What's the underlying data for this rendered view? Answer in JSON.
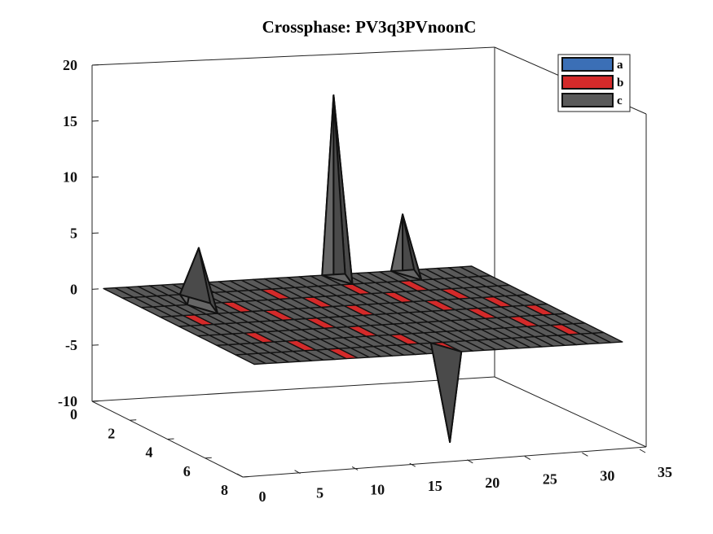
{
  "chart_data": {
    "type": "surface",
    "title": "Crossphase: PV3q3PVnoonC",
    "xlabel": "",
    "ylabel": "",
    "zlabel": "",
    "xlim": [
      0,
      35
    ],
    "ylim": [
      0,
      8
    ],
    "zlim": [
      -10,
      20
    ],
    "x_ticks": [
      "0",
      "5",
      "10",
      "15",
      "20",
      "25",
      "30",
      "35"
    ],
    "y_ticks": [
      "0",
      "2",
      "4",
      "6",
      "8"
    ],
    "z_ticks": [
      "-10",
      "-5",
      "0",
      "5",
      "10",
      "15",
      "20"
    ],
    "legend": {
      "position": "top-right",
      "entries": [
        {
          "label": "a",
          "color": "#3b6fb6"
        },
        {
          "label": "b",
          "color": "#d42a2a"
        },
        {
          "label": "c",
          "color": "#5a5a5a"
        }
      ]
    },
    "series": [
      {
        "name": "c",
        "color": "#5a5a5a",
        "features": [
          {
            "kind": "peak",
            "x": 6,
            "y": 2,
            "z": 5
          },
          {
            "kind": "peak",
            "x": 21,
            "y": 0,
            "z": 16
          },
          {
            "kind": "peak",
            "x": 27,
            "y": 0,
            "z": 5
          },
          {
            "kind": "valley",
            "x": 18,
            "y": 8,
            "z": -8
          }
        ]
      },
      {
        "name": "b",
        "color": "#d42a2a",
        "features": []
      },
      {
        "name": "a",
        "color": "#3b6fb6",
        "features": []
      }
    ],
    "grid": false
  }
}
